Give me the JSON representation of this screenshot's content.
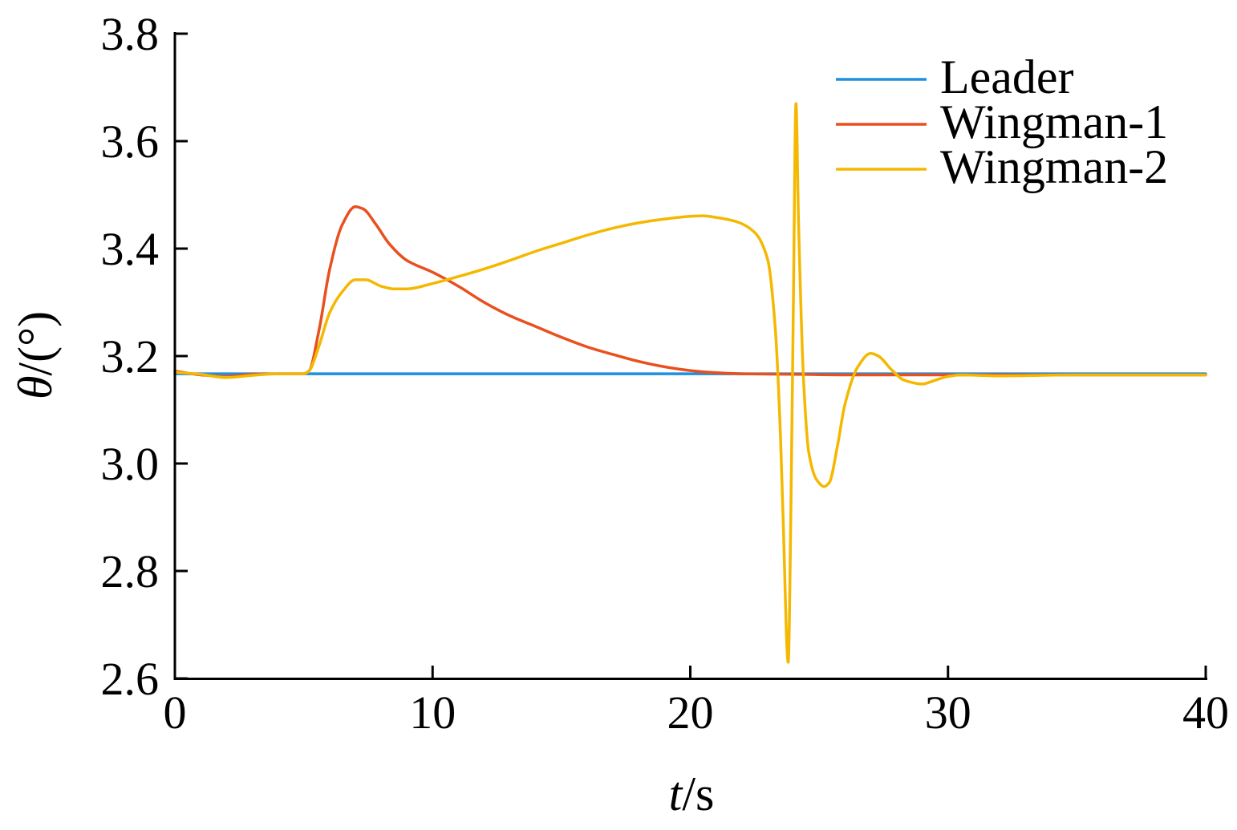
{
  "chart_data": {
    "type": "line",
    "xlabel_italic": "t",
    "xlabel_unit": "/s",
    "ylabel_italic": "θ",
    "ylabel_unit": "/(°)",
    "xlim": [
      0,
      40
    ],
    "ylim": [
      2.6,
      3.8
    ],
    "xticks": [
      "0",
      "10",
      "20",
      "30",
      "40"
    ],
    "xtick_values": [
      0,
      10,
      20,
      30,
      40
    ],
    "yticks": [
      "2.6",
      "2.8",
      "3.0",
      "3.2",
      "3.4",
      "3.6",
      "3.8"
    ],
    "ytick_values": [
      2.6,
      2.8,
      3.0,
      3.2,
      3.4,
      3.6,
      3.8
    ],
    "grid": false,
    "legend_position": "top-right",
    "series": [
      {
        "name": "Leader",
        "color": "#1f8fe0",
        "x": [
          0,
          40
        ],
        "y": [
          3.167,
          3.167
        ]
      },
      {
        "name": "Wingman-1",
        "color": "#e8501e",
        "x": [
          0,
          1,
          2,
          3,
          4,
          5,
          5.2,
          5.6,
          6.0,
          6.5,
          7.0,
          7.3,
          7.8,
          8.3,
          9.0,
          10.0,
          11.0,
          12.0,
          13.0,
          14.0,
          15.0,
          16.0,
          17.0,
          18.0,
          19.0,
          20.0,
          21.0,
          22.0,
          24.0,
          26.0,
          30.0,
          35.0,
          40.0
        ],
        "y": [
          3.172,
          3.165,
          3.162,
          3.166,
          3.167,
          3.167,
          3.172,
          3.25,
          3.36,
          3.445,
          3.478,
          3.474,
          3.445,
          3.41,
          3.378,
          3.356,
          3.33,
          3.3,
          3.275,
          3.255,
          3.235,
          3.217,
          3.203,
          3.19,
          3.18,
          3.173,
          3.169,
          3.167,
          3.166,
          3.165,
          3.165,
          3.165,
          3.165
        ]
      },
      {
        "name": "Wingman-2",
        "color": "#f5b800",
        "x": [
          0,
          1,
          2,
          3,
          4,
          5,
          5.2,
          5.6,
          6.0,
          6.5,
          7.0,
          7.4,
          8.0,
          8.5,
          9.0,
          10.0,
          11.0,
          12.0,
          13.0,
          14.0,
          15.0,
          16.0,
          17.0,
          18.0,
          19.0,
          20.0,
          20.5,
          21.0,
          21.8,
          22.5,
          23.0,
          23.3,
          23.5,
          23.6,
          23.8,
          23.9,
          24.0,
          24.1,
          24.2,
          24.4,
          24.6,
          24.9,
          25.2,
          25.4,
          25.7,
          26.0,
          26.5,
          27.0,
          27.3,
          27.8,
          28.3,
          29.0,
          29.5,
          30.0,
          30.5,
          32.0,
          35.0,
          40.0
        ],
        "y": [
          3.17,
          3.166,
          3.16,
          3.164,
          3.167,
          3.167,
          3.172,
          3.22,
          3.28,
          3.32,
          3.342,
          3.342,
          3.33,
          3.325,
          3.325,
          3.335,
          3.348,
          3.362,
          3.378,
          3.395,
          3.41,
          3.425,
          3.438,
          3.448,
          3.455,
          3.46,
          3.461,
          3.458,
          3.45,
          3.43,
          3.38,
          3.25,
          3.05,
          2.9,
          2.63,
          2.9,
          3.3,
          3.67,
          3.45,
          3.15,
          3.02,
          2.97,
          2.957,
          2.965,
          3.03,
          3.11,
          3.18,
          3.205,
          3.2,
          3.175,
          3.155,
          3.148,
          3.155,
          3.162,
          3.165,
          3.163,
          3.165,
          3.165
        ]
      }
    ]
  }
}
